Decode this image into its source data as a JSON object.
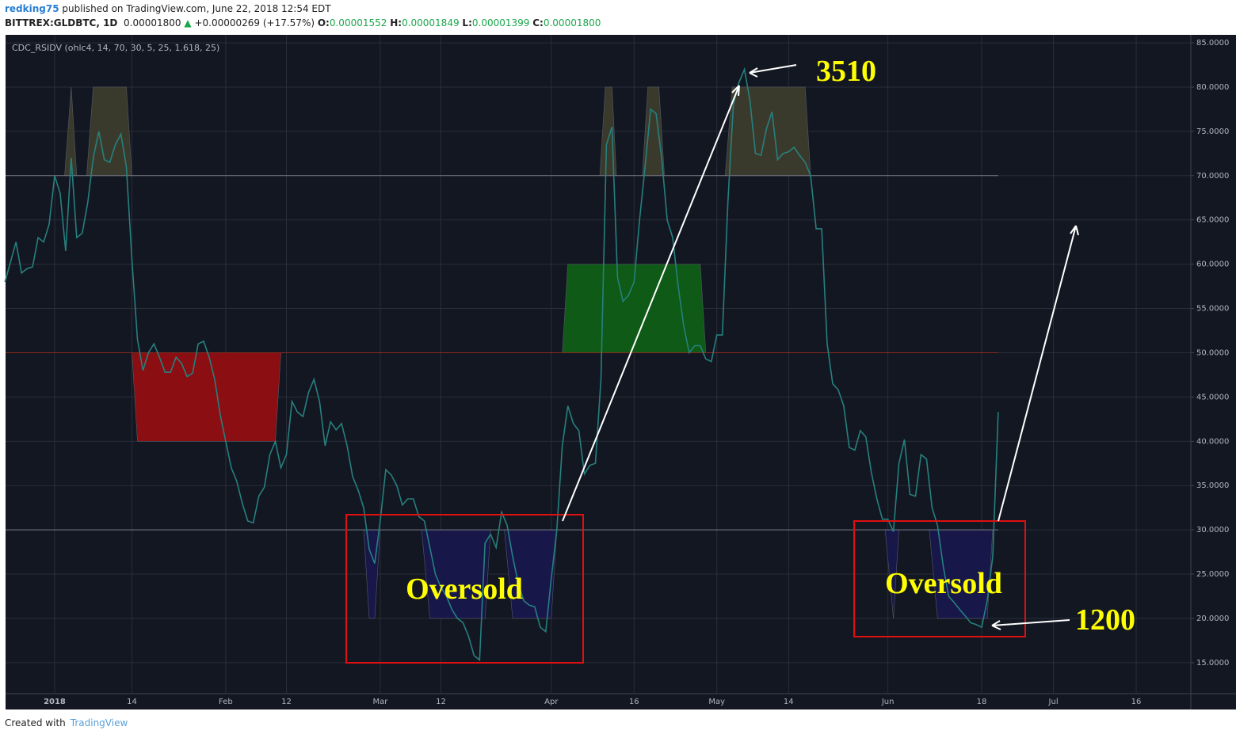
{
  "header": {
    "user": "redking75",
    "published": "published on TradingView.com, June 22, 2018 12:54 EDT",
    "symbol": "BITTREX:GLDBTC, 1D",
    "price": "0.00001800",
    "arrow": "▲",
    "change": "+0.00000269 (+17.57%)",
    "ohlc": [
      {
        "label": "O:",
        "value": "0.00001552"
      },
      {
        "label": "H:",
        "value": "0.00001849"
      },
      {
        "label": "L:",
        "value": "0.00001399"
      },
      {
        "label": "C:",
        "value": "0.00001800"
      }
    ]
  },
  "footer": {
    "created": "Created with",
    "brand": "TradingView"
  },
  "chart_data": {
    "type": "line",
    "indicator": "CDC_RSIDV (ohlc4, 14, 70, 30, 5, 25, 1.618, 25)",
    "xlim": [
      -8.9,
      205.9
    ],
    "ylim": [
      11.5,
      85.9
    ],
    "xticks": [
      {
        "value": 0,
        "label": "2018"
      },
      14,
      {
        "value": 31,
        "label": "Feb"
      },
      {
        "value": 42,
        "label": "12"
      },
      {
        "value": 59,
        "label": "Mar"
      },
      {
        "value": 70,
        "label": "12"
      },
      {
        "value": 90,
        "label": "Apr"
      },
      {
        "value": 105,
        "label": "16"
      },
      {
        "value": 120,
        "label": "May"
      },
      {
        "value": 133,
        "label": "14"
      },
      {
        "value": 151,
        "label": "Jun"
      },
      {
        "value": 168,
        "label": "18"
      },
      {
        "value": 181,
        "label": "Jul"
      },
      {
        "value": 196,
        "label": "16"
      }
    ],
    "yticks": [
      {
        "value": 15,
        "label": "15.0000"
      },
      {
        "value": 20,
        "label": "20.0000"
      },
      {
        "value": 25,
        "label": "25.0000"
      },
      {
        "value": 30,
        "label": "30.0000"
      },
      {
        "value": 35,
        "label": "35.0000"
      },
      {
        "value": 40,
        "label": "40.0000"
      },
      {
        "value": 45,
        "label": "45.0000"
      },
      {
        "value": 50,
        "label": "50.0000"
      },
      {
        "value": 55,
        "label": "55.0000"
      },
      {
        "value": 60,
        "label": "60.0000"
      },
      {
        "value": 65,
        "label": "65.0000"
      },
      {
        "value": 70,
        "label": "70.0000"
      },
      {
        "value": 75,
        "label": "75.0000"
      },
      {
        "value": 80,
        "label": "80.0000"
      },
      {
        "value": 85,
        "label": "85.0000"
      }
    ],
    "grid": true,
    "levels": [
      {
        "value": 70,
        "color": "#787b86"
      },
      {
        "value": 50,
        "color": "#8b2a1f"
      },
      {
        "value": 30,
        "color": "#787b86"
      }
    ],
    "fills": [
      {
        "color": "#3a3a2c",
        "x": [
          1.8,
          3,
          4
        ],
        "y": [
          70,
          80,
          70
        ]
      },
      {
        "color": "#3a3a2c",
        "x": [
          5.8,
          7,
          13,
          14
        ],
        "y": [
          70,
          80,
          80,
          70
        ]
      },
      {
        "color": "#3a3a2c",
        "x": [
          98.8,
          99.8,
          101,
          101.8
        ],
        "y": [
          70,
          80,
          80,
          70
        ]
      },
      {
        "color": "#3a3a2c",
        "x": [
          106.5,
          107.5,
          109.5,
          110.5
        ],
        "y": [
          70,
          80,
          80,
          70
        ]
      },
      {
        "color": "#3a3a2c",
        "x": [
          121.5,
          122.8,
          136,
          137
        ],
        "y": [
          70,
          80,
          80,
          70
        ]
      },
      {
        "color": "#8b0e13",
        "x": [
          14,
          15,
          40,
          41
        ],
        "y": [
          50,
          40,
          40,
          50
        ]
      },
      {
        "color": "#0f5a16",
        "x": [
          92,
          93,
          117,
          118
        ],
        "y": [
          50,
          60,
          60,
          50
        ]
      },
      {
        "color": "#17174a",
        "x": [
          56,
          57,
          58,
          59
        ],
        "y": [
          30,
          20,
          20,
          30
        ]
      },
      {
        "color": "#17174a",
        "x": [
          66.5,
          68,
          78,
          79
        ],
        "y": [
          30,
          20,
          20,
          30
        ]
      },
      {
        "color": "#17174a",
        "x": [
          81.5,
          83,
          90,
          91
        ],
        "y": [
          30,
          20,
          20,
          30
        ]
      },
      {
        "color": "#17174a",
        "x": [
          150.5,
          152,
          153
        ],
        "y": [
          30,
          20,
          30
        ]
      },
      {
        "color": "#17174a",
        "x": [
          158.5,
          160,
          169,
          170
        ],
        "y": [
          30,
          20,
          20,
          30
        ]
      }
    ],
    "series": [
      {
        "color": "#26807e",
        "x": [
          -9,
          -7,
          -6,
          -5,
          -4,
          -3,
          -2,
          -1,
          0,
          1,
          2,
          3,
          4,
          5,
          6,
          7,
          8,
          9,
          10,
          11,
          12,
          13,
          14,
          15,
          16,
          17,
          18,
          19,
          20,
          21,
          22,
          23,
          24,
          25,
          26,
          27,
          28,
          29,
          30,
          31,
          32,
          33,
          34,
          35,
          36,
          37,
          38,
          39,
          40,
          41,
          42,
          43,
          44,
          45,
          46,
          47,
          48,
          49,
          50,
          51,
          52,
          53,
          54,
          55,
          56,
          57,
          58,
          59,
          60,
          61,
          62,
          63,
          64,
          65,
          66,
          67,
          68,
          69,
          70,
          71,
          72,
          73,
          74,
          75,
          76,
          77,
          78,
          79,
          80,
          81,
          82,
          83,
          84,
          85,
          86,
          87,
          88,
          89,
          90,
          91,
          92,
          93,
          94,
          95,
          96,
          97,
          98,
          99,
          100,
          101,
          102,
          103,
          104,
          105,
          106,
          107,
          108,
          109,
          110,
          111,
          112,
          113,
          114,
          115,
          116,
          117,
          118,
          119,
          120,
          121,
          122,
          123,
          124,
          125,
          126,
          127,
          128,
          129,
          130,
          131,
          132,
          133,
          134,
          135,
          136,
          137,
          138,
          139,
          140,
          141,
          142,
          143,
          144,
          145,
          146,
          147,
          148,
          149,
          150,
          151,
          152,
          153,
          154,
          155,
          156,
          157,
          158,
          159,
          160,
          161,
          162,
          163,
          164,
          165,
          166,
          167,
          168,
          169,
          170,
          171
        ],
        "values": [
          58,
          62.5,
          59,
          59.5,
          59.7,
          63,
          62.5,
          64.5,
          70,
          68,
          61.5,
          72,
          63,
          63.5,
          67,
          72,
          75,
          71.8,
          71.5,
          73.5,
          74.7,
          71,
          60.5,
          51.5,
          48,
          50,
          51,
          49.5,
          47.8,
          47.8,
          49.5,
          48.8,
          47.3,
          47.7,
          51,
          51.3,
          49.5,
          47,
          43,
          40,
          37,
          35.5,
          33,
          31,
          30.8,
          33.8,
          34.8,
          38.5,
          40,
          37,
          38.5,
          44.5,
          43.3,
          42.8,
          45.5,
          47,
          44.5,
          39.5,
          42.2,
          41.3,
          42,
          39.5,
          36,
          34.5,
          32.5,
          27.8,
          26.2,
          31,
          36.8,
          36.2,
          35,
          32.8,
          33.5,
          33.5,
          31.5,
          31,
          28,
          25,
          23.5,
          22.5,
          21,
          20,
          19.5,
          18,
          15.8,
          15.3,
          28.5,
          29.5,
          28,
          32,
          30.5,
          27,
          24,
          22,
          21.5,
          21.3,
          19,
          18.5,
          24.5,
          30,
          39.5,
          44,
          42,
          41.2,
          36.3,
          37.3,
          37.5,
          47,
          73.5,
          75.5,
          58.5,
          55.8,
          56.5,
          58,
          65,
          71,
          77.5,
          77,
          72,
          65,
          63,
          57.5,
          53,
          50,
          50.8,
          50.8,
          49.3,
          49,
          52,
          52,
          67,
          78,
          80.5,
          82,
          78.5,
          72.5,
          72.3,
          75.3,
          77.2,
          71.8,
          72.5,
          72.7,
          73.2,
          72.3,
          71.5,
          70,
          64,
          64,
          51,
          46.5,
          45.8,
          44,
          39.3,
          39,
          41.2,
          40.5,
          36.5,
          33.5,
          31.2,
          31.2,
          29.8,
          37.5,
          40.2,
          34,
          33.8,
          38.5,
          38,
          32.5,
          30.5,
          26,
          22.5,
          21.8,
          21,
          20.3,
          19.5,
          19.3,
          19,
          22,
          27,
          43.3
        ]
      }
    ],
    "annotations": [
      "Oversold",
      "Oversold",
      "3510",
      "1200"
    ]
  }
}
